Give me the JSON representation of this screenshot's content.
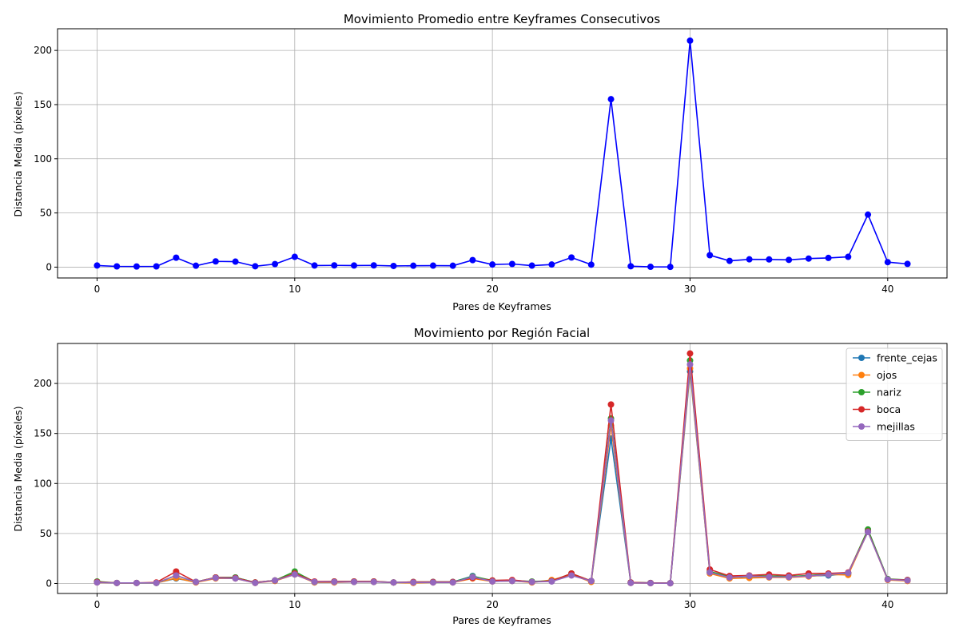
{
  "chart_data": [
    {
      "type": "line",
      "title": "Movimiento Promedio entre Keyframes Consecutivos",
      "xlabel": "Pares de Keyframes",
      "ylabel": "Distancia Media (píxeles)",
      "xlim": [
        -2,
        43
      ],
      "ylim": [
        -10,
        220
      ],
      "xticks": [
        0,
        10,
        20,
        30,
        40
      ],
      "yticks": [
        0,
        50,
        100,
        150,
        200
      ],
      "grid": true,
      "series": [
        {
          "color": "#0000ff",
          "values": [
            1.5,
            0.7,
            0.6,
            0.7,
            8.7,
            1.3,
            5.3,
            5.1,
            0.8,
            2.8,
            9.5,
            1.5,
            1.6,
            1.5,
            1.6,
            1.1,
            1.3,
            1.4,
            1.3,
            6.5,
            2.4,
            2.9,
            1.4,
            2.4,
            8.9,
            2.3,
            155.0,
            0.8,
            0.3,
            0.2,
            209.0,
            11.0,
            5.8,
            7.2,
            7.1,
            6.7,
            7.9,
            8.5,
            9.5,
            48.5,
            4.6,
            3.0
          ]
        }
      ]
    },
    {
      "type": "line",
      "title": "Movimiento por Región Facial",
      "xlabel": "Pares de Keyframes",
      "ylabel": "Distancia Media (píxeles)",
      "xlim": [
        -2,
        43
      ],
      "ylim": [
        -10,
        240
      ],
      "xticks": [
        0,
        10,
        20,
        30,
        40
      ],
      "yticks": [
        0,
        50,
        100,
        150,
        200
      ],
      "grid": true,
      "legend": "top-right",
      "series": [
        {
          "name": "frente_cejas",
          "color": "#1f77b4",
          "values": [
            1.5,
            0.5,
            0.5,
            0.6,
            5.0,
            1.5,
            6.0,
            6.0,
            1.0,
            3.0,
            10.0,
            1.5,
            1.5,
            1.5,
            1.5,
            1.0,
            1.0,
            1.5,
            1.5,
            7.5,
            2.5,
            2.5,
            1.5,
            2.5,
            9.0,
            2.5,
            145.0,
            1.0,
            0.5,
            0.3,
            212.0,
            11.0,
            6.0,
            7.0,
            7.0,
            7.0,
            7.5,
            8.0,
            10.0,
            53.0,
            4.0,
            3.0
          ]
        },
        {
          "name": "ojos",
          "color": "#ff7f0e",
          "values": [
            1.0,
            0.5,
            0.5,
            0.5,
            5.5,
            1.0,
            5.0,
            5.0,
            0.5,
            2.5,
            9.0,
            1.0,
            1.0,
            1.5,
            1.5,
            1.0,
            0.5,
            1.0,
            1.0,
            5.0,
            2.0,
            2.5,
            1.0,
            3.5,
            9.0,
            1.5,
            158.0,
            0.5,
            0.3,
            0.2,
            215.0,
            10.0,
            5.0,
            5.5,
            6.0,
            6.0,
            7.0,
            9.0,
            8.5,
            52.0,
            3.5,
            2.5
          ]
        },
        {
          "name": "nariz",
          "color": "#2ca02c",
          "values": [
            2.0,
            0.5,
            0.5,
            0.5,
            8.0,
            1.5,
            6.0,
            6.0,
            1.0,
            3.0,
            12.0,
            1.5,
            2.0,
            2.0,
            2.0,
            1.0,
            1.5,
            1.5,
            1.5,
            7.0,
            3.0,
            3.0,
            2.0,
            2.5,
            10.0,
            2.5,
            165.0,
            1.0,
            0.5,
            0.3,
            223.0,
            12.0,
            7.0,
            7.5,
            7.5,
            7.0,
            8.0,
            9.5,
            10.5,
            54.0,
            4.5,
            3.5
          ]
        },
        {
          "name": "boca",
          "color": "#d62728",
          "values": [
            1.5,
            0.5,
            0.5,
            1.0,
            12.0,
            1.5,
            6.0,
            5.5,
            1.0,
            3.0,
            10.0,
            2.0,
            2.0,
            2.0,
            2.0,
            1.0,
            1.5,
            1.5,
            1.5,
            5.5,
            3.0,
            3.5,
            1.5,
            2.5,
            10.0,
            2.5,
            179.0,
            1.0,
            0.5,
            0.3,
            230.0,
            14.0,
            7.5,
            8.0,
            9.0,
            8.0,
            10.0,
            10.0,
            11.0,
            52.0,
            4.0,
            3.5
          ]
        },
        {
          "name": "mejillas",
          "color": "#9467bd",
          "values": [
            1.0,
            0.5,
            0.5,
            0.5,
            8.0,
            1.5,
            5.5,
            5.0,
            0.5,
            3.0,
            9.0,
            1.5,
            1.5,
            1.5,
            1.5,
            1.0,
            1.0,
            1.0,
            1.0,
            6.5,
            2.0,
            2.5,
            1.5,
            2.0,
            8.0,
            2.5,
            163.0,
            0.5,
            0.3,
            0.2,
            219.0,
            11.0,
            6.0,
            7.5,
            6.5,
            6.5,
            7.5,
            9.0,
            10.5,
            51.5,
            4.0,
            3.0
          ]
        }
      ]
    }
  ]
}
